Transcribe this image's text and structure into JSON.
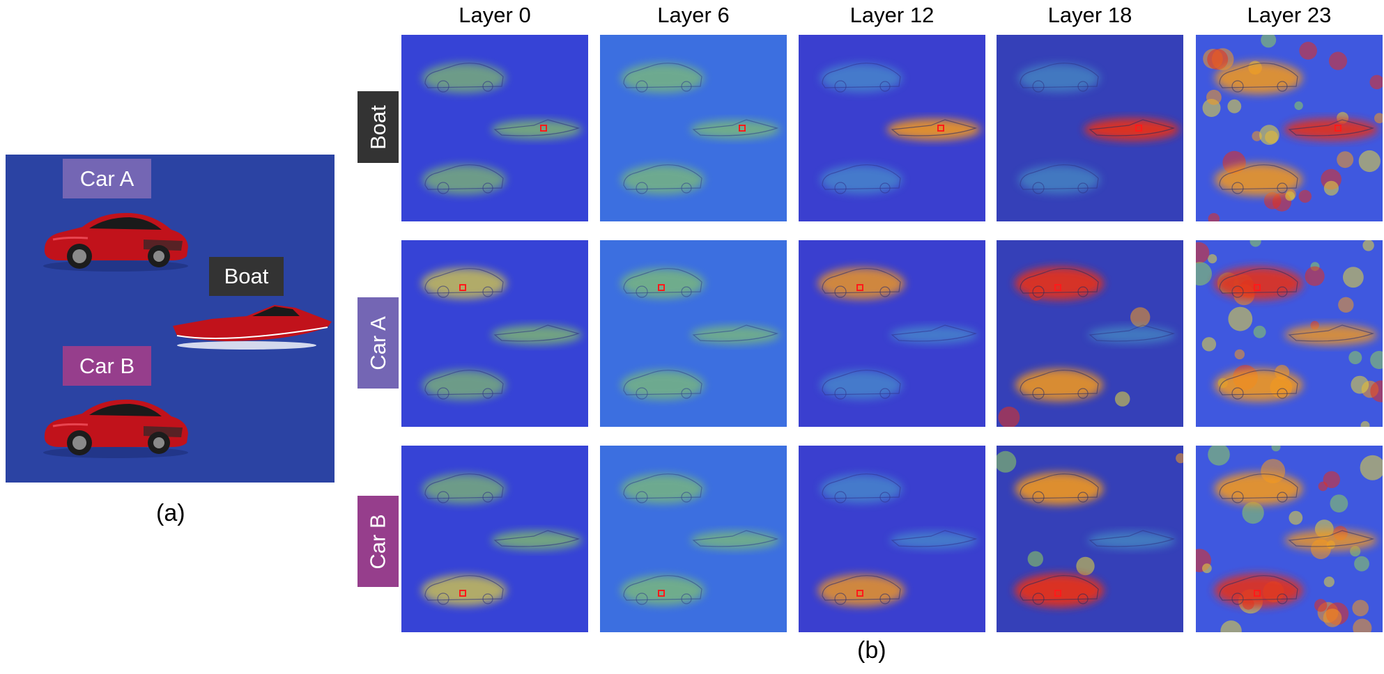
{
  "panel_a": {
    "labels": {
      "car_a": "Car A",
      "boat": "Boat",
      "car_b": "Car B"
    },
    "caption": "(a)",
    "background_color": "#2b43a3"
  },
  "panel_b": {
    "caption": "(b)",
    "layers": [
      "Layer 0",
      "Layer 6",
      "Layer 12",
      "Layer 18",
      "Layer 23"
    ],
    "rows": [
      {
        "label": "Boat",
        "color": "#333333"
      },
      {
        "label": "Car A",
        "color": "#7466b4"
      },
      {
        "label": "Car B",
        "color": "#963e8c"
      }
    ]
  }
}
